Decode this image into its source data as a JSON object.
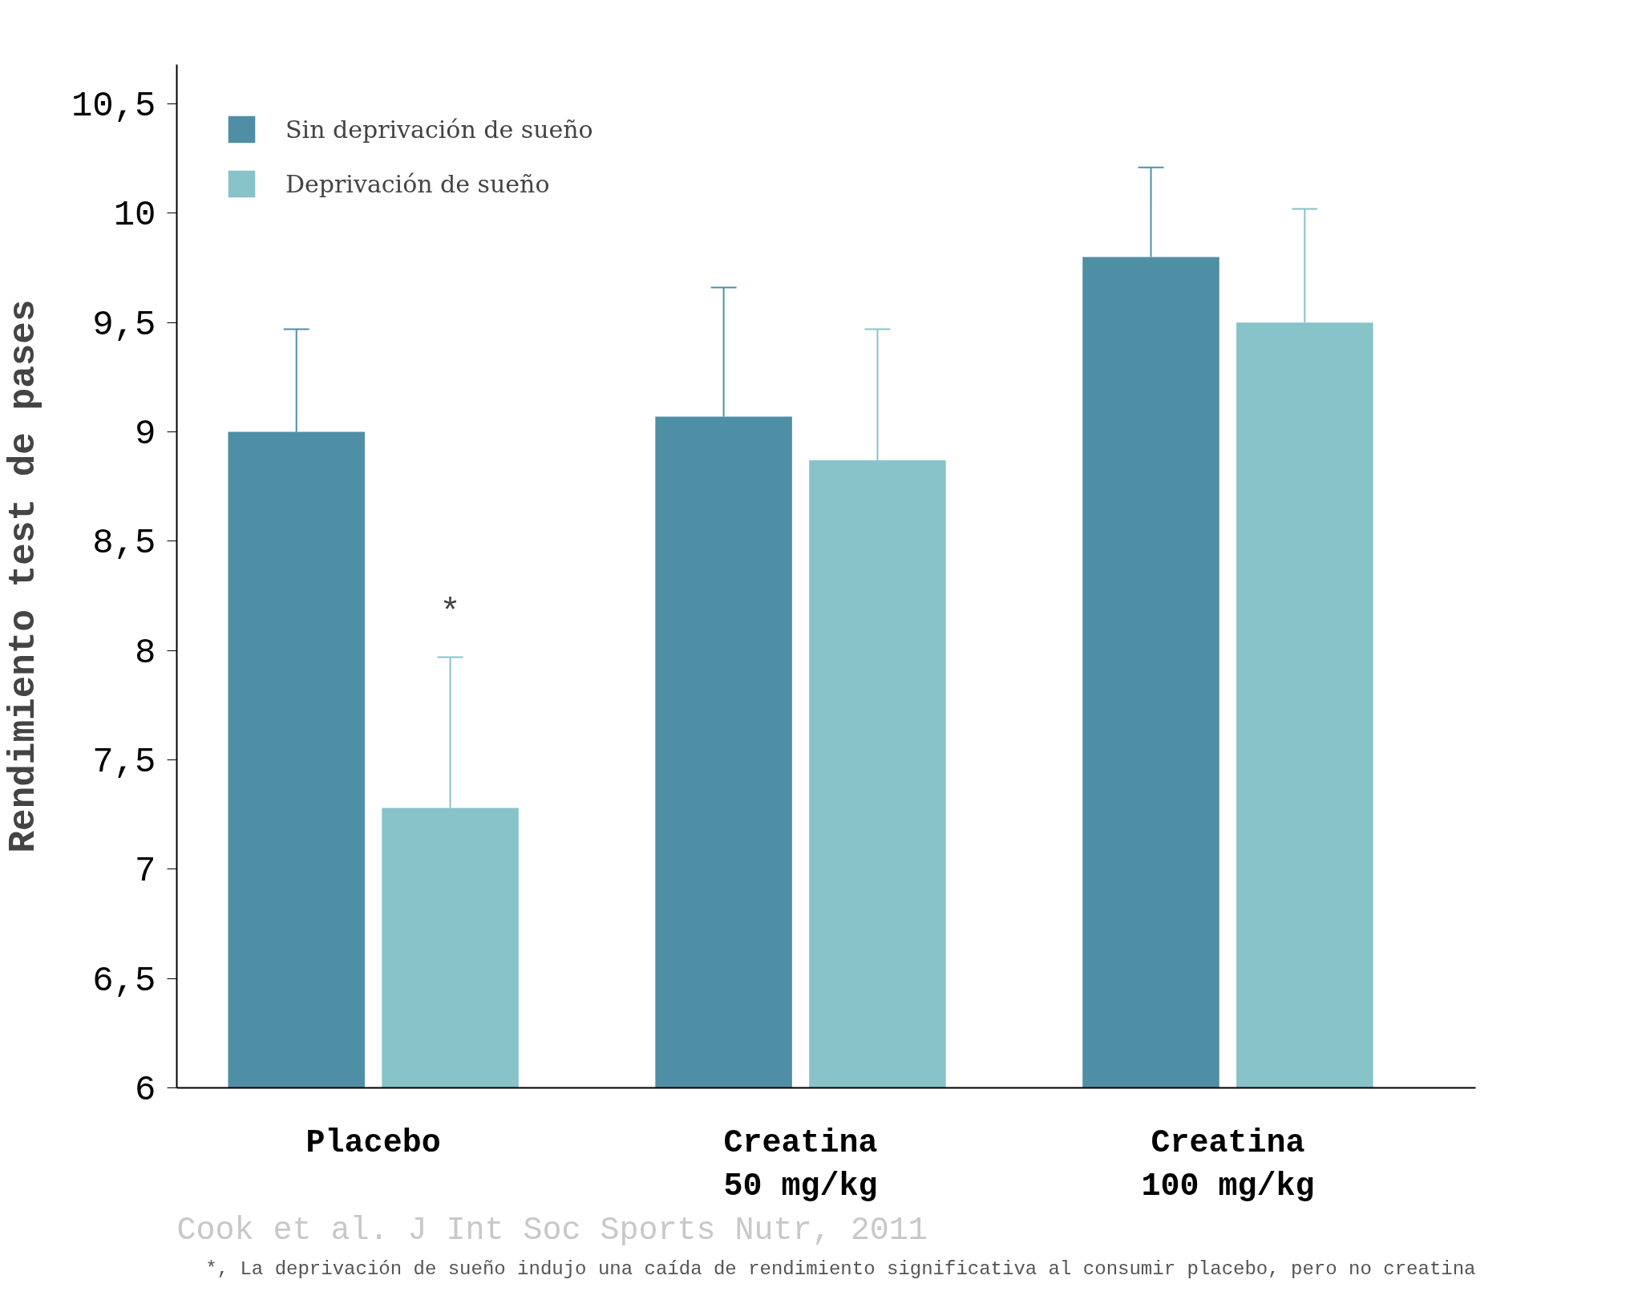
{
  "chart_data": {
    "type": "bar",
    "ylabel": "Rendimiento test de pases",
    "categories": [
      "Placebo",
      "Creatina\n50 mg/kg",
      "Creatina\n100 mg/kg"
    ],
    "series": [
      {
        "name": "Sin deprivación de sueño",
        "color": "#4f8fa5",
        "values": [
          9.0,
          9.07,
          9.8
        ],
        "errors": [
          [
            9.0,
            9.47
          ],
          [
            9.07,
            9.66
          ],
          [
            9.8,
            10.21
          ]
        ]
      },
      {
        "name": "Deprivación de sueño",
        "color": "#87c3c9",
        "values": [
          7.28,
          8.87,
          9.5
        ],
        "errors": [
          [
            7.28,
            7.97
          ],
          [
            8.87,
            9.47
          ],
          [
            9.5,
            10.02
          ]
        ]
      }
    ],
    "ylim": [
      6,
      10.68
    ],
    "yticks": [
      6,
      {
        "value": 6.5,
        "label": "6,5"
      },
      7,
      {
        "value": 7.5,
        "label": "7,5"
      },
      8,
      {
        "value": 8.5,
        "label": "8,5"
      },
      9,
      {
        "value": 9.5,
        "label": "9,5"
      },
      10,
      {
        "value": 10.5,
        "label": "10,5"
      }
    ],
    "grid": false,
    "legend": "top left",
    "annotations": [
      "*",
      "Cook et al. J Int Soc Sports Nutr, 2011",
      "*, La deprivación de sueño indujo una caída de rendimiento significativa al consumir placebo, pero no creatina"
    ]
  }
}
